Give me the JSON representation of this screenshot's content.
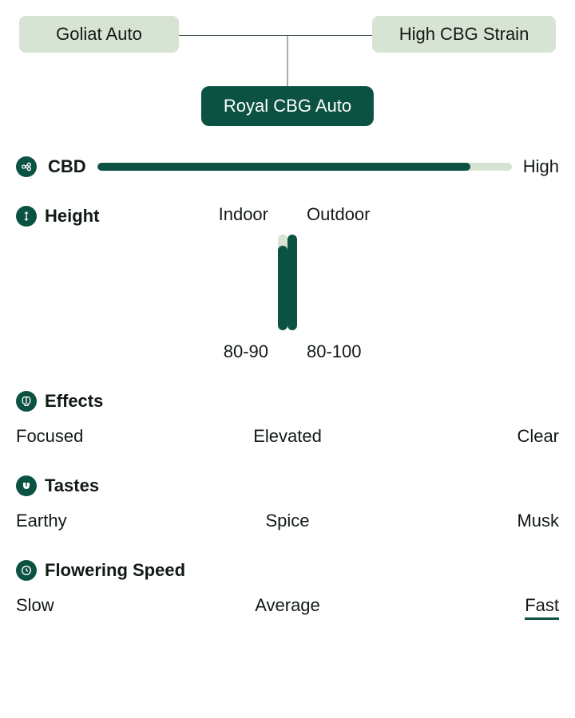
{
  "colors": {
    "accent": "#0c5242",
    "light": "#d7e4d4",
    "text": "#121a15",
    "bg": "#ffffff",
    "line": "#4a5c55"
  },
  "genealogy": {
    "parent_left": "Goliat Auto",
    "parent_right": "High CBG Strain",
    "child": "Royal CBG Auto"
  },
  "cbd": {
    "title": "CBD",
    "value_label": "High",
    "fill_percent": 90
  },
  "height": {
    "title": "Height",
    "indoor": {
      "label": "Indoor",
      "range": "80-90",
      "fill_percent": 88
    },
    "outdoor": {
      "label": "Outdoor",
      "range": "80-100",
      "fill_percent": 100
    }
  },
  "effects": {
    "title": "Effects",
    "items": [
      "Focused",
      "Elevated",
      "Clear"
    ]
  },
  "tastes": {
    "title": "Tastes",
    "items": [
      "Earthy",
      "Spice",
      "Musk"
    ]
  },
  "flowering": {
    "title": "Flowering Speed",
    "options": [
      "Slow",
      "Average",
      "Fast"
    ],
    "selected_index": 2
  }
}
